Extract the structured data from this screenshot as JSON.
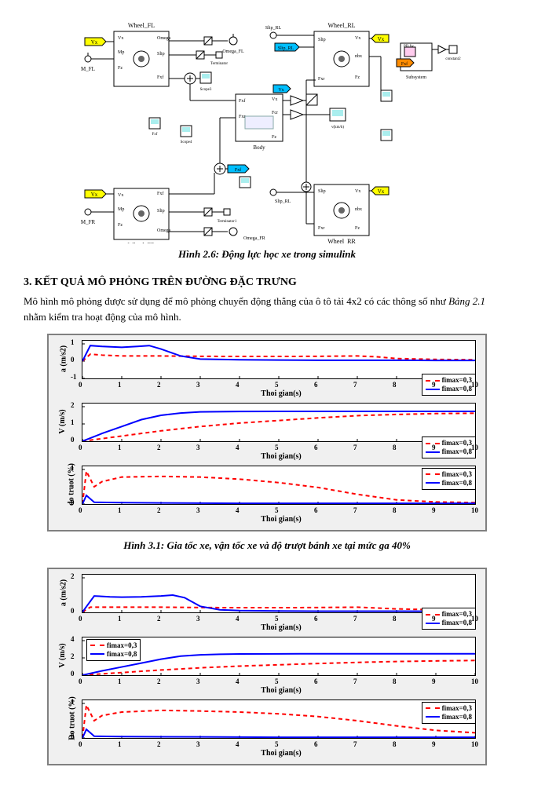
{
  "simulink": {
    "caption": "Hình 2.6: Động lực học xe trong simulink",
    "blocks": {
      "wheel_fl": "Wheel_FL",
      "wheel_fr": "Wheel_FR",
      "wheel_rl": "Wheel_RL",
      "wheel_rr": "Wheel_RR",
      "body": "Body",
      "subsystem": "Subsystem",
      "scope3": "Scope3",
      "scope4": "Scope4",
      "terminator": "Terminator",
      "terminator1": "Terminator1",
      "constant2": "constant2",
      "pd_fw": "PD fw",
      "v_kmh": "v(km/h)"
    },
    "ports": {
      "vx": "Vx",
      "mp": "Mp",
      "fz": "Fz",
      "fxf": "Fxf",
      "fxr": "Fxr",
      "slip": "Slip",
      "omega": "Omega",
      "nbx": "nbx",
      "fcr": "Fcr",
      "m_fl": "M_FL",
      "m_fr": "M_FR",
      "slip_rl": "Slip_RL",
      "omega_fl": "Omega_FL",
      "omega_fr": "Omega_FR"
    },
    "tags": {
      "vx_tag": "Vx",
      "fxf_tag": "Fxf",
      "slip_rl_tag": "Slip_RL"
    },
    "colors": {
      "tag_yellow": "#ffff00",
      "tag_cyan": "#00bfff",
      "tag_orange": "#ff8c00",
      "block_fill": "#ffffff",
      "block_border": "#000000",
      "line": "#000000",
      "bg": "#ffffff"
    }
  },
  "section3": {
    "heading": "3. KẾT QUẢ MÔ PHỎNG TRÊN ĐƯỜNG ĐẶC TRƯNG",
    "paragraph_pre": "Mô hình mô phỏng được sử dụng để mô phỏng chuyển động thẳng của ô tô tải 4x2 có các thông số như ",
    "table_ref": "Bảng 2.1",
    "paragraph_post": " nhằm kiểm tra hoạt động của mô hình."
  },
  "charts": {
    "xlabel": "Thoi gian(s)",
    "xlim": [
      0,
      10
    ],
    "xticks": [
      0,
      1,
      2,
      3,
      4,
      5,
      6,
      7,
      8,
      9,
      10
    ],
    "legend": {
      "series1": {
        "label": "fimax=0,3",
        "color": "#ff0000",
        "dash": "5,4",
        "width": 2
      },
      "series2": {
        "label": "fimax=0,8",
        "color": "#0000ff",
        "dash": "none",
        "width": 2
      }
    },
    "grid_color": "#000000",
    "background": "#ffffff",
    "fig31": {
      "caption": "Hình 3.1: Gia tốc xe, vận tốc xe và độ trượt bánh xe tại mức ga 40%",
      "panels": [
        {
          "ylabel": "a (m/s2)",
          "ylim": [
            -1,
            1
          ],
          "yticks": [
            -1,
            0,
            1
          ],
          "legend_pos": "bottom-right",
          "s1": [
            [
              0,
              0.0
            ],
            [
              0.2,
              0.4
            ],
            [
              0.5,
              0.35
            ],
            [
              1,
              0.3
            ],
            [
              2,
              0.3
            ],
            [
              3,
              0.28
            ],
            [
              4,
              0.27
            ],
            [
              5,
              0.27
            ],
            [
              6,
              0.28
            ],
            [
              7,
              0.3
            ],
            [
              7.5,
              0.25
            ],
            [
              8,
              0.15
            ],
            [
              9,
              0.1
            ],
            [
              10,
              0.08
            ]
          ],
          "s2": [
            [
              0,
              0.0
            ],
            [
              0.2,
              0.9
            ],
            [
              0.5,
              0.85
            ],
            [
              1,
              0.8
            ],
            [
              1.4,
              0.85
            ],
            [
              1.7,
              0.9
            ],
            [
              2,
              0.7
            ],
            [
              2.5,
              0.3
            ],
            [
              3,
              0.12
            ],
            [
              4,
              0.08
            ],
            [
              5,
              0.06
            ],
            [
              6,
              0.05
            ],
            [
              7,
              0.05
            ],
            [
              8,
              0.05
            ],
            [
              9,
              0.04
            ],
            [
              10,
              0.04
            ]
          ]
        },
        {
          "ylabel": "V (m/s)",
          "ylim": [
            0,
            2
          ],
          "yticks": [
            0,
            1,
            2
          ],
          "legend_pos": "bottom-right",
          "s1": [
            [
              0,
              0
            ],
            [
              1,
              0.3
            ],
            [
              2,
              0.6
            ],
            [
              3,
              0.85
            ],
            [
              4,
              1.05
            ],
            [
              5,
              1.2
            ],
            [
              6,
              1.35
            ],
            [
              7,
              1.48
            ],
            [
              8,
              1.55
            ],
            [
              9,
              1.6
            ],
            [
              10,
              1.62
            ]
          ],
          "s2": [
            [
              0,
              0
            ],
            [
              0.5,
              0.45
            ],
            [
              1,
              0.85
            ],
            [
              1.5,
              1.25
            ],
            [
              2,
              1.5
            ],
            [
              2.5,
              1.63
            ],
            [
              3,
              1.7
            ],
            [
              4,
              1.72
            ],
            [
              5,
              1.73
            ],
            [
              6,
              1.73
            ],
            [
              7,
              1.73
            ],
            [
              8,
              1.73
            ],
            [
              9,
              1.73
            ],
            [
              10,
              1.73
            ]
          ]
        },
        {
          "ylabel": "do truot (%)",
          "ylim": [
            0,
            1
          ],
          "yticks": [
            0,
            1
          ],
          "legend_pos": "top-right",
          "s1": [
            [
              0,
              0
            ],
            [
              0.1,
              0.95
            ],
            [
              0.3,
              0.5
            ],
            [
              0.5,
              0.65
            ],
            [
              1,
              0.78
            ],
            [
              2,
              0.8
            ],
            [
              3,
              0.78
            ],
            [
              4,
              0.72
            ],
            [
              5,
              0.62
            ],
            [
              6,
              0.48
            ],
            [
              7,
              0.28
            ],
            [
              8,
              0.12
            ],
            [
              9,
              0.06
            ],
            [
              10,
              0.04
            ]
          ],
          "s2": [
            [
              0,
              0
            ],
            [
              0.1,
              0.25
            ],
            [
              0.3,
              0.05
            ],
            [
              1,
              0.04
            ],
            [
              2,
              0.03
            ],
            [
              3,
              0.025
            ],
            [
              4,
              0.02
            ],
            [
              5,
              0.02
            ],
            [
              6,
              0.02
            ],
            [
              7,
              0.02
            ],
            [
              8,
              0.02
            ],
            [
              9,
              0.02
            ],
            [
              10,
              0.02
            ]
          ]
        }
      ]
    },
    "fig32": {
      "panels": [
        {
          "ylabel": "a (m/s2)",
          "ylim": [
            0,
            2
          ],
          "yticks": [
            0,
            2
          ],
          "legend_pos": "bottom-right",
          "s1": [
            [
              0,
              0.02
            ],
            [
              0.2,
              0.3
            ],
            [
              0.5,
              0.3
            ],
            [
              1,
              0.3
            ],
            [
              2,
              0.3
            ],
            [
              3,
              0.28
            ],
            [
              4,
              0.27
            ],
            [
              5,
              0.27
            ],
            [
              6,
              0.28
            ],
            [
              7,
              0.3
            ],
            [
              8,
              0.2
            ],
            [
              9,
              0.15
            ],
            [
              10,
              0.12
            ]
          ],
          "s2": [
            [
              0,
              0.02
            ],
            [
              0.3,
              0.95
            ],
            [
              0.7,
              0.9
            ],
            [
              1,
              0.88
            ],
            [
              1.5,
              0.9
            ],
            [
              2,
              0.95
            ],
            [
              2.3,
              1.0
            ],
            [
              2.6,
              0.85
            ],
            [
              3,
              0.35
            ],
            [
              3.5,
              0.15
            ],
            [
              4,
              0.1
            ],
            [
              5,
              0.08
            ],
            [
              6,
              0.07
            ],
            [
              7,
              0.07
            ],
            [
              8,
              0.07
            ],
            [
              9,
              0.06
            ],
            [
              10,
              0.06
            ]
          ]
        },
        {
          "ylabel": "V (m/s)",
          "ylim": [
            0,
            4
          ],
          "yticks": [
            0,
            2,
            4
          ],
          "legend_pos": "top-left",
          "s1": [
            [
              0,
              0
            ],
            [
              1,
              0.3
            ],
            [
              2,
              0.6
            ],
            [
              3,
              0.85
            ],
            [
              4,
              1.05
            ],
            [
              5,
              1.2
            ],
            [
              6,
              1.35
            ],
            [
              7,
              1.48
            ],
            [
              8,
              1.58
            ],
            [
              9,
              1.65
            ],
            [
              10,
              1.7
            ]
          ],
          "s2": [
            [
              0,
              0
            ],
            [
              0.5,
              0.5
            ],
            [
              1,
              0.95
            ],
            [
              1.5,
              1.4
            ],
            [
              2,
              1.85
            ],
            [
              2.5,
              2.2
            ],
            [
              3,
              2.35
            ],
            [
              3.5,
              2.42
            ],
            [
              4,
              2.45
            ],
            [
              5,
              2.47
            ],
            [
              6,
              2.48
            ],
            [
              7,
              2.48
            ],
            [
              8,
              2.48
            ],
            [
              9,
              2.48
            ],
            [
              10,
              2.48
            ]
          ]
        },
        {
          "ylabel": "Do truot (%)",
          "ylim": [
            0,
            1
          ],
          "yticks": [
            0,
            1
          ],
          "legend_pos": "top-right",
          "s1": [
            [
              0,
              0
            ],
            [
              0.1,
              0.95
            ],
            [
              0.3,
              0.5
            ],
            [
              0.5,
              0.65
            ],
            [
              1,
              0.75
            ],
            [
              2,
              0.8
            ],
            [
              3,
              0.78
            ],
            [
              4,
              0.75
            ],
            [
              5,
              0.7
            ],
            [
              6,
              0.62
            ],
            [
              7,
              0.5
            ],
            [
              8,
              0.35
            ],
            [
              9,
              0.22
            ],
            [
              10,
              0.15
            ]
          ],
          "s2": [
            [
              0,
              0
            ],
            [
              0.1,
              0.25
            ],
            [
              0.3,
              0.05
            ],
            [
              1,
              0.04
            ],
            [
              2,
              0.035
            ],
            [
              3,
              0.03
            ],
            [
              4,
              0.025
            ],
            [
              5,
              0.02
            ],
            [
              6,
              0.02
            ],
            [
              7,
              0.02
            ],
            [
              8,
              0.02
            ],
            [
              9,
              0.02
            ],
            [
              10,
              0.02
            ]
          ]
        }
      ]
    }
  }
}
